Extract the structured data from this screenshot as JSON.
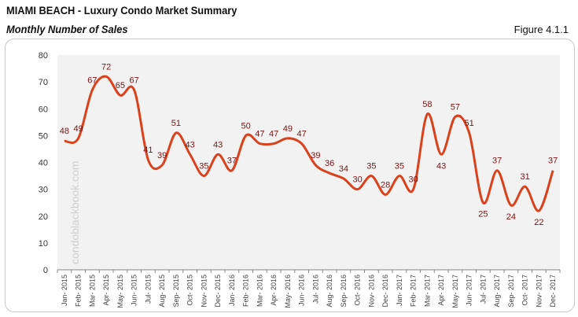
{
  "header": {
    "title": "MIAMI BEACH - Luxury Condo Market Summary",
    "subtitle": "Monthly Number of Sales",
    "figure": "Figure 4.1.1"
  },
  "watermark": "condoblackbook.com",
  "colors": {
    "line": "#d9421c",
    "label": "#7a1212",
    "plot_bg": "#f2f2f2"
  },
  "chart_data": {
    "type": "line",
    "title": "",
    "xlabel": "",
    "ylabel": "",
    "ylim": [
      0,
      80
    ],
    "yticks": [
      0,
      10,
      20,
      30,
      40,
      50,
      60,
      70,
      80
    ],
    "grid": false,
    "smooth": true,
    "categories": [
      "Jan- 2015",
      "Feb- 2015",
      "Mar- 2015",
      "Apr- 2015",
      "May- 2015",
      "Jun- 2015",
      "Jul- 2015",
      "Aug- 2015",
      "Sep- 2015",
      "Oct- 2015",
      "Nov- 2015",
      "Dec- 2015",
      "Jan- 2016",
      "Feb- 2016",
      "Mar- 2016",
      "Apr- 2016",
      "May- 2016",
      "Jun- 2016",
      "Jul- 2016",
      "Aug- 2016",
      "Sep- 2016",
      "Oct- 2016",
      "Nov- 2016",
      "Dec- 2016",
      "Jan- 2017",
      "Feb- 2017",
      "Mar- 2017",
      "Apr- 2017",
      "May- 2017",
      "Jun- 2017",
      "Jul- 2017",
      "Aug- 2017",
      "Sep- 2017",
      "Oct- 2017",
      "Nov- 2017",
      "Dec- 2017"
    ],
    "values": [
      48,
      49,
      67,
      72,
      65,
      67,
      41,
      39,
      51,
      43,
      35,
      43,
      37,
      50,
      47,
      47,
      49,
      47,
      39,
      36,
      34,
      30,
      35,
      28,
      35,
      30,
      58,
      43,
      57,
      51,
      25,
      37,
      24,
      31,
      22,
      37
    ]
  }
}
